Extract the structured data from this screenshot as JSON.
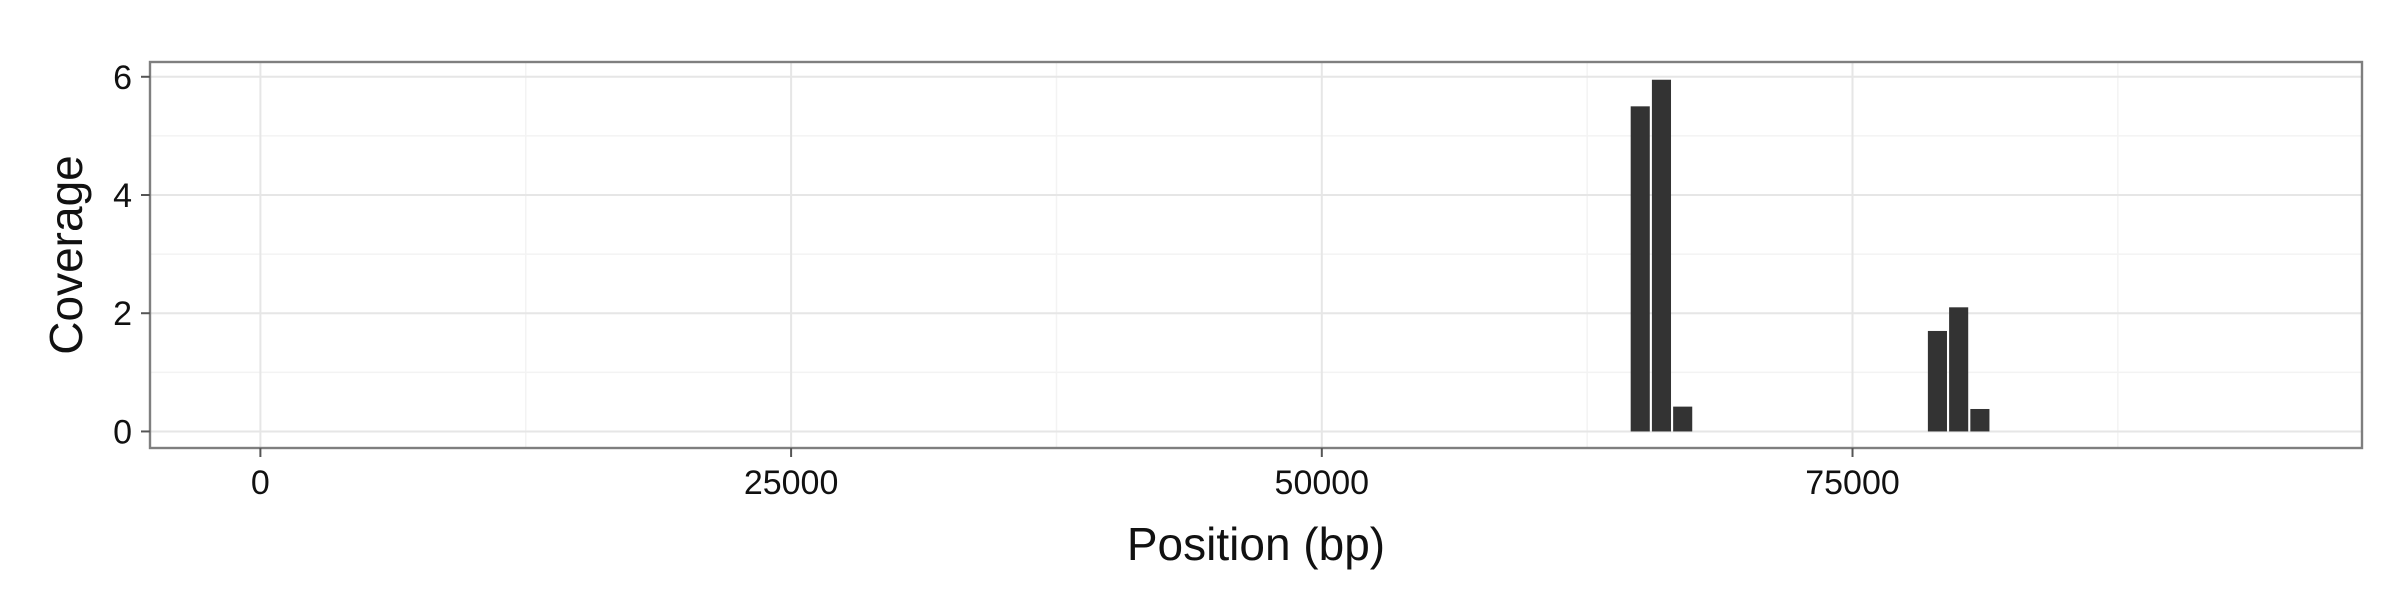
{
  "chart_data": {
    "type": "bar",
    "title": "",
    "xlabel": "Position (bp)",
    "ylabel": "Coverage",
    "xlim": [
      -5200,
      99000
    ],
    "ylim": [
      -0.28,
      6.25
    ],
    "x_ticks": [
      0,
      25000,
      50000,
      75000
    ],
    "y_ticks": [
      0,
      2,
      4,
      6
    ],
    "bin_width": 1000,
    "grid": true,
    "legend": "none",
    "bar_color": "#333333",
    "x": [
      65000,
      66000,
      67000,
      79000,
      80000,
      81000
    ],
    "values": [
      5.5,
      5.95,
      0.42,
      1.7,
      2.1,
      0.38
    ]
  }
}
